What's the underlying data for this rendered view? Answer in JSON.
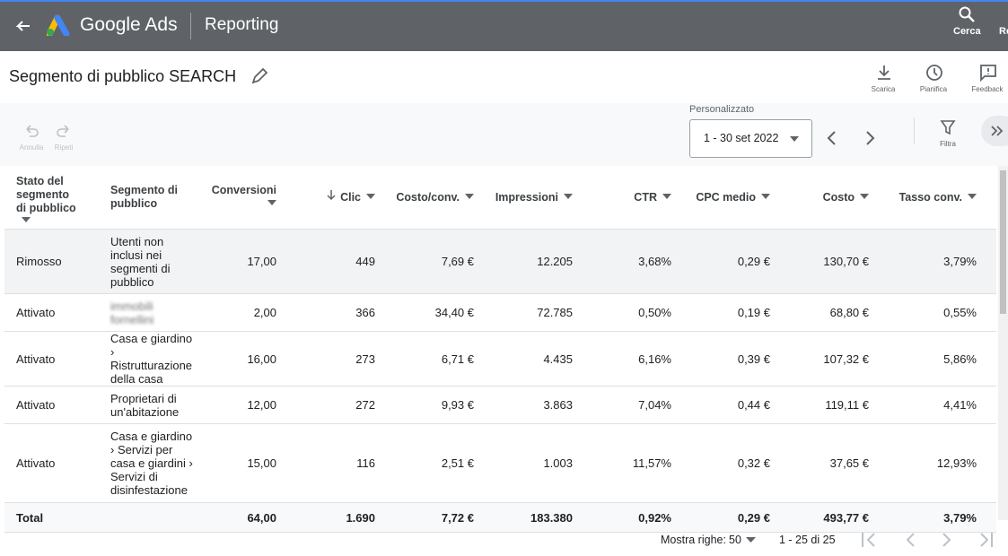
{
  "header": {
    "brand": "Google Ads",
    "section": "Reporting",
    "search": "Cerca",
    "cut_label": "Re"
  },
  "titlebar": {
    "title": "Segmento di pubblico SEARCH",
    "actions": [
      "Scarica",
      "Pianifica",
      "Feedback"
    ]
  },
  "toolbar": {
    "undo": "Annulla",
    "redo": "Ripeti",
    "date_caption": "Personalizzato",
    "date_range": "1 - 30 set 2022",
    "filter": "Filtra"
  },
  "table": {
    "headers": [
      "Stato del segmento di pubblico",
      "Segmento di pubblico",
      "Conversioni",
      "Clic",
      "Costo/conv.",
      "Impressioni",
      "CTR",
      "CPC medio",
      "Costo",
      "Tasso conv."
    ],
    "rows": [
      [
        "Rimosso",
        "Utenti non inclusi nei segmenti di pubblico",
        "17,00",
        "449",
        "7,69 €",
        "12.205",
        "3,68%",
        "0,29 €",
        "130,70 €",
        "3,79%"
      ],
      [
        "Attivato",
        "immobili fornellini",
        "2,00",
        "366",
        "34,40 €",
        "72.785",
        "0,50%",
        "0,19 €",
        "68,80 €",
        "0,55%"
      ],
      [
        "Attivato",
        "Casa e giardino › Ristrutturazione della casa",
        "16,00",
        "273",
        "6,71 €",
        "4.435",
        "6,16%",
        "0,39 €",
        "107,32 €",
        "5,86%"
      ],
      [
        "Attivato",
        "Proprietari di un'abitazione",
        "12,00",
        "272",
        "9,93 €",
        "3.863",
        "7,04%",
        "0,44 €",
        "119,11 €",
        "4,41%"
      ],
      [
        "Attivato",
        "Casa e giardino › Servizi per casa e giardini › Servizi di disinfestazione",
        "15,00",
        "116",
        "2,51 €",
        "1.003",
        "11,57%",
        "0,32 €",
        "37,65 €",
        "12,93%"
      ]
    ],
    "total": [
      "Total",
      "",
      "64,00",
      "1.690",
      "7,72 €",
      "183.380",
      "0,92%",
      "0,29 €",
      "493,77 €",
      "3,79%"
    ]
  },
  "footer": {
    "rows_label": "Mostra righe:",
    "rows_value": "50",
    "range": "1 - 25 di 25"
  }
}
